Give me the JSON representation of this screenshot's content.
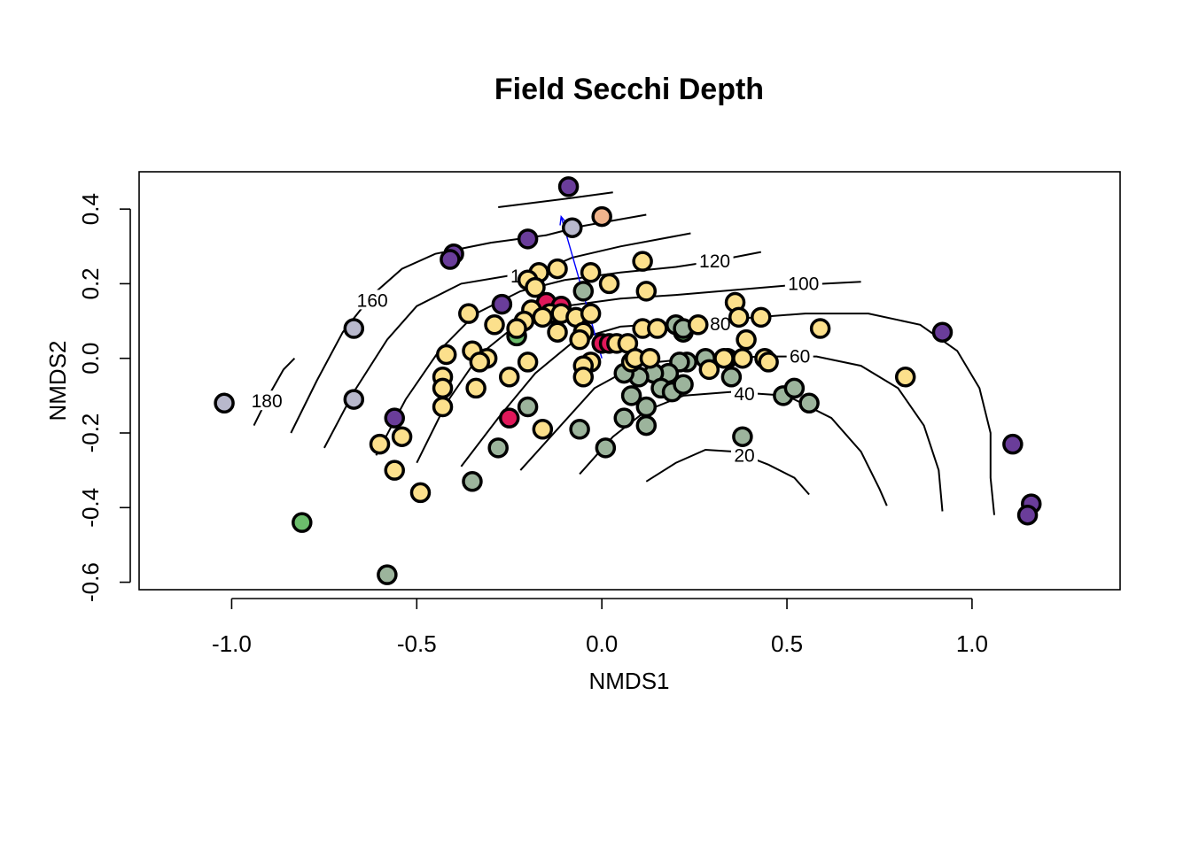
{
  "chart_data": {
    "type": "scatter",
    "title": "Field Secchi Depth",
    "xlabel": "NMDS1",
    "ylabel": "NMDS2",
    "xlim": [
      -1.25,
      1.4
    ],
    "ylim": [
      -0.62,
      0.5
    ],
    "x_ticks": [
      "-1.0",
      "-0.5",
      "0.0",
      "0.5",
      "1.0"
    ],
    "y_ticks": [
      "-0.6",
      "-0.4",
      "-0.2",
      "0.0",
      "0.2",
      "0.4"
    ],
    "x_tick_values": [
      -1.0,
      -0.5,
      0.0,
      0.5,
      1.0
    ],
    "y_tick_values": [
      -0.6,
      -0.4,
      -0.2,
      0.0,
      0.2,
      0.4
    ],
    "grid": false,
    "legend": "none",
    "point_outline_color": "#000000",
    "vector": {
      "from": [
        0.0,
        0.0
      ],
      "to": [
        -0.11,
        0.38
      ],
      "color": "#0000ff"
    },
    "contours": [
      {
        "label": "20",
        "points": [
          [
            0.12,
            -0.33
          ],
          [
            0.2,
            -0.28
          ],
          [
            0.28,
            -0.245
          ],
          [
            0.36,
            -0.25
          ],
          [
            0.45,
            -0.285
          ],
          [
            0.52,
            -0.32
          ],
          [
            0.56,
            -0.365
          ]
        ],
        "label_at": [
          0.385,
          -0.26
        ]
      },
      {
        "label": "40",
        "points": [
          [
            -0.06,
            -0.31
          ],
          [
            0.03,
            -0.21
          ],
          [
            0.12,
            -0.14
          ],
          [
            0.22,
            -0.1
          ],
          [
            0.35,
            -0.09
          ],
          [
            0.5,
            -0.1
          ],
          [
            0.62,
            -0.16
          ],
          [
            0.7,
            -0.25
          ],
          [
            0.75,
            -0.35
          ],
          [
            0.77,
            -0.395
          ]
        ],
        "label_at": [
          0.385,
          -0.095
        ]
      },
      {
        "label": "60",
        "points": [
          [
            -0.22,
            -0.3
          ],
          [
            -0.12,
            -0.19
          ],
          [
            -0.02,
            -0.08
          ],
          [
            0.1,
            -0.015
          ],
          [
            0.25,
            0.0
          ],
          [
            0.45,
            0.005
          ],
          [
            0.58,
            0.005
          ],
          [
            0.7,
            -0.02
          ],
          [
            0.8,
            -0.08
          ],
          [
            0.87,
            -0.18
          ],
          [
            0.91,
            -0.3
          ],
          [
            0.92,
            -0.41
          ]
        ],
        "label_at": [
          0.535,
          0.005
        ]
      },
      {
        "label": "80",
        "points": [
          [
            -0.38,
            -0.29
          ],
          [
            -0.28,
            -0.16
          ],
          [
            -0.18,
            -0.04
          ],
          [
            -0.07,
            0.05
          ],
          [
            0.05,
            0.085
          ],
          [
            0.2,
            0.095
          ],
          [
            0.35,
            0.105
          ],
          [
            0.55,
            0.12
          ],
          [
            0.72,
            0.12
          ],
          [
            0.86,
            0.09
          ],
          [
            0.96,
            0.02
          ],
          [
            1.02,
            -0.08
          ],
          [
            1.05,
            -0.2
          ],
          [
            1.05,
            -0.32
          ],
          [
            1.06,
            -0.42
          ]
        ],
        "label_at": [
          0.32,
          0.092
        ]
      },
      {
        "label": "100",
        "points": [
          [
            -0.5,
            -0.28
          ],
          [
            -0.42,
            -0.12
          ],
          [
            -0.33,
            0.01
          ],
          [
            -0.23,
            0.09
          ],
          [
            -0.1,
            0.14
          ],
          [
            0.05,
            0.16
          ],
          [
            0.2,
            0.17
          ],
          [
            0.38,
            0.185
          ],
          [
            0.5,
            0.195
          ],
          [
            0.7,
            0.205
          ]
        ],
        "label_at": [
          0.545,
          0.2
        ]
      },
      {
        "label": "120",
        "points": [
          [
            -0.61,
            -0.26
          ],
          [
            -0.53,
            -0.11
          ],
          [
            -0.44,
            0.02
          ],
          [
            -0.34,
            0.12
          ],
          [
            -0.22,
            0.18
          ],
          [
            -0.1,
            0.21
          ],
          [
            0.05,
            0.23
          ],
          [
            0.2,
            0.245
          ],
          [
            0.3,
            0.26
          ],
          [
            0.43,
            0.285
          ]
        ],
        "label_at": [
          0.305,
          0.26
        ]
      },
      {
        "label": "140",
        "points": [
          [
            -0.75,
            -0.24
          ],
          [
            -0.67,
            -0.09
          ],
          [
            -0.58,
            0.05
          ],
          [
            -0.5,
            0.14
          ],
          [
            -0.38,
            0.2
          ],
          [
            -0.26,
            0.22
          ],
          [
            -0.15,
            0.24
          ],
          [
            -0.08,
            0.27
          ],
          [
            0.05,
            0.3
          ],
          [
            0.24,
            0.335
          ]
        ],
        "label_at": [
          -0.205,
          0.22
        ]
      },
      {
        "label": "160",
        "points": [
          [
            -0.84,
            -0.2
          ],
          [
            -0.77,
            -0.06
          ],
          [
            -0.7,
            0.07
          ],
          [
            -0.62,
            0.17
          ],
          [
            -0.54,
            0.24
          ],
          [
            -0.45,
            0.28
          ],
          [
            -0.3,
            0.31
          ],
          [
            -0.15,
            0.33
          ],
          [
            -0.05,
            0.355
          ],
          [
            0.12,
            0.385
          ]
        ],
        "label_at": [
          -0.62,
          0.155
        ]
      },
      {
        "label": "180",
        "points": [
          [
            -0.94,
            -0.18
          ],
          [
            -0.9,
            -0.1
          ],
          [
            -0.86,
            -0.03
          ],
          [
            -0.83,
            0.0
          ]
        ],
        "label_at": [
          -0.905,
          -0.115
        ]
      },
      {
        "label": "",
        "points": [
          [
            -0.28,
            0.405
          ],
          [
            -0.08,
            0.43
          ],
          [
            0.03,
            0.445
          ]
        ]
      }
    ],
    "series": [
      {
        "color": "#6a3d9a",
        "points": [
          [
            -0.09,
            0.46
          ],
          [
            -0.4,
            0.28
          ],
          [
            -0.41,
            0.265
          ],
          [
            -0.2,
            0.32
          ],
          [
            -0.27,
            0.145
          ],
          [
            -0.56,
            -0.16
          ],
          [
            0.92,
            0.07
          ],
          [
            1.11,
            -0.23
          ],
          [
            1.16,
            -0.39
          ],
          [
            1.15,
            -0.42
          ]
        ]
      },
      {
        "color": "#f0b48c",
        "points": [
          [
            0.0,
            0.38
          ]
        ]
      },
      {
        "color": "#b8b8cc",
        "points": [
          [
            -0.08,
            0.35
          ],
          [
            -0.67,
            0.08
          ],
          [
            -0.67,
            -0.11
          ],
          [
            -1.02,
            -0.12
          ]
        ]
      },
      {
        "color": "#e0185a",
        "points": [
          [
            -0.15,
            0.15
          ],
          [
            -0.11,
            0.14
          ],
          [
            0.0,
            0.04
          ],
          [
            0.02,
            0.04
          ],
          [
            -0.25,
            -0.16
          ]
        ]
      },
      {
        "color": "#6cbd6c",
        "points": [
          [
            -0.23,
            0.06
          ],
          [
            0.22,
            0.07
          ],
          [
            -0.81,
            -0.44
          ]
        ]
      },
      {
        "color": "#9cb49c",
        "points": [
          [
            -0.05,
            0.18
          ],
          [
            0.2,
            0.09
          ],
          [
            0.22,
            0.08
          ],
          [
            0.34,
            0.0
          ],
          [
            0.28,
            0.0
          ],
          [
            0.23,
            -0.01
          ],
          [
            0.21,
            -0.01
          ],
          [
            0.18,
            -0.04
          ],
          [
            0.14,
            -0.04
          ],
          [
            0.1,
            -0.05
          ],
          [
            0.06,
            -0.04
          ],
          [
            0.16,
            -0.08
          ],
          [
            0.19,
            -0.09
          ],
          [
            0.22,
            -0.07
          ],
          [
            0.08,
            -0.1
          ],
          [
            0.12,
            -0.13
          ],
          [
            0.35,
            -0.05
          ],
          [
            0.49,
            -0.1
          ],
          [
            0.52,
            -0.08
          ],
          [
            0.56,
            -0.12
          ],
          [
            -0.2,
            -0.13
          ],
          [
            0.06,
            -0.16
          ],
          [
            0.12,
            -0.18
          ],
          [
            -0.06,
            -0.19
          ],
          [
            0.38,
            -0.21
          ],
          [
            0.01,
            -0.24
          ],
          [
            -0.28,
            -0.24
          ],
          [
            -0.35,
            -0.33
          ],
          [
            -0.58,
            -0.58
          ]
        ]
      },
      {
        "color": "#fce08c",
        "points": [
          [
            -0.17,
            0.23
          ],
          [
            -0.2,
            0.21
          ],
          [
            -0.12,
            0.24
          ],
          [
            -0.03,
            0.23
          ],
          [
            -0.18,
            0.19
          ],
          [
            0.02,
            0.2
          ],
          [
            0.11,
            0.26
          ],
          [
            0.12,
            0.18
          ],
          [
            -0.36,
            0.12
          ],
          [
            -0.19,
            0.13
          ],
          [
            -0.14,
            0.12
          ],
          [
            -0.16,
            0.11
          ],
          [
            -0.11,
            0.12
          ],
          [
            -0.07,
            0.11
          ],
          [
            -0.03,
            0.12
          ],
          [
            -0.21,
            0.1
          ],
          [
            -0.23,
            0.08
          ],
          [
            -0.12,
            0.07
          ],
          [
            -0.05,
            0.07
          ],
          [
            -0.06,
            0.05
          ],
          [
            0.04,
            0.04
          ],
          [
            0.07,
            0.04
          ],
          [
            0.11,
            0.08
          ],
          [
            0.15,
            0.08
          ],
          [
            0.26,
            0.09
          ],
          [
            0.36,
            0.15
          ],
          [
            0.37,
            0.11
          ],
          [
            0.43,
            0.11
          ],
          [
            0.39,
            0.05
          ],
          [
            0.59,
            0.08
          ],
          [
            -0.29,
            0.09
          ],
          [
            -0.35,
            0.02
          ],
          [
            -0.31,
            0.0
          ],
          [
            -0.33,
            -0.01
          ],
          [
            -0.42,
            0.01
          ],
          [
            -0.2,
            -0.01
          ],
          [
            -0.03,
            -0.01
          ],
          [
            -0.05,
            -0.02
          ],
          [
            0.08,
            -0.01
          ],
          [
            0.09,
            0.0
          ],
          [
            0.13,
            0.0
          ],
          [
            0.33,
            0.0
          ],
          [
            0.38,
            0.0
          ],
          [
            0.44,
            0.0
          ],
          [
            0.45,
            -0.01
          ],
          [
            -0.43,
            -0.05
          ],
          [
            -0.43,
            -0.08
          ],
          [
            -0.34,
            -0.08
          ],
          [
            -0.25,
            -0.05
          ],
          [
            -0.05,
            -0.05
          ],
          [
            0.29,
            -0.03
          ],
          [
            0.82,
            -0.05
          ],
          [
            -0.43,
            -0.13
          ],
          [
            -0.16,
            -0.19
          ],
          [
            -0.6,
            -0.23
          ],
          [
            -0.54,
            -0.21
          ],
          [
            -0.56,
            -0.3
          ],
          [
            -0.49,
            -0.36
          ]
        ]
      }
    ]
  }
}
